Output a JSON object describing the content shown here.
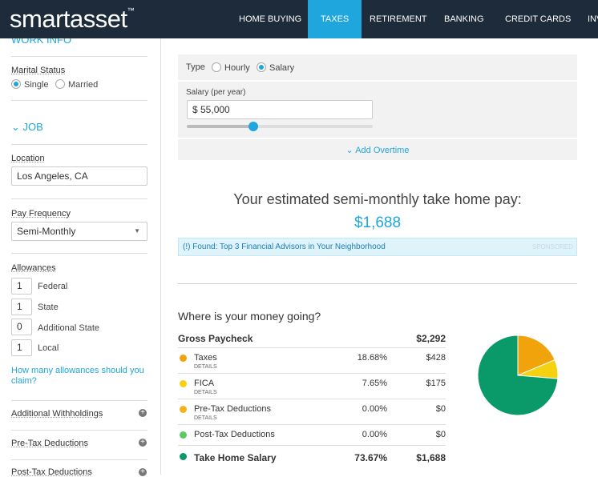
{
  "header": {
    "logo": "smartasset",
    "logo_mark": "™",
    "nav": [
      "HOME BUYING",
      "TAXES",
      "RETIREMENT",
      "BANKING",
      "CREDIT CARDS",
      "INV"
    ],
    "active_nav": 1
  },
  "sidebar": {
    "section_cut": "WORK INFO",
    "marital": {
      "label": "Marital Status",
      "options": [
        "Single",
        "Married"
      ],
      "selected": 0
    },
    "job": "JOB",
    "location": {
      "label": "Location",
      "value": "Los Angeles, CA"
    },
    "pay_frequency": {
      "label": "Pay Frequency",
      "value": "Semi-Monthly"
    },
    "allowances": {
      "label": "Allowances",
      "rows": [
        {
          "count": 1,
          "label": "Federal"
        },
        {
          "count": 1,
          "label": "State"
        },
        {
          "count": 0,
          "label": "Additional State"
        },
        {
          "count": 1,
          "label": "Local"
        }
      ]
    },
    "help": "How many allowances should you claim?",
    "sections": [
      "Additional Withholdings",
      "Pre-Tax Deductions",
      "Post-Tax Deductions"
    ]
  },
  "main": {
    "type": {
      "label": "Type",
      "options": [
        "Hourly",
        "Salary"
      ],
      "selected": 1
    },
    "salary": {
      "label": "Salary (per year)",
      "value": "$ 55,000"
    },
    "overtime": "Add Overtime",
    "result": {
      "heading": "Your estimated semi-monthly take home pay:",
      "amount": "$1,688"
    },
    "ad": {
      "text": "(!) Found: Top 3 Financial Advisors in Your Neighborhood",
      "tag": "SPONSORED"
    },
    "breakdown": {
      "title": "Where is your money going?",
      "gross": {
        "label": "Gross Paycheck",
        "amount": "$2,292"
      },
      "rows": [
        {
          "name": "Taxes",
          "color": "#f0a30a",
          "details": "DETAILS",
          "percent": {
            "value": 18.68,
            "label": "18.68%"
          },
          "amount": "$428"
        },
        {
          "name": "FICA",
          "color": "#f6d10f",
          "details": "DETAILS",
          "percent": {
            "value": 7.65,
            "label": "7.65%"
          },
          "amount": "$175"
        },
        {
          "name": "Pre-Tax Deductions",
          "color": "#f5b21c",
          "details": "DETAILS",
          "percent": {
            "value": 0,
            "label": "0.00%"
          },
          "amount": "$0"
        },
        {
          "name": "Post-Tax Deductions",
          "color": "#5ec865",
          "percent": {
            "value": 0,
            "label": "0.00%"
          },
          "amount": "$0"
        },
        {
          "name": "Take Home Salary",
          "color": "#0a9a6a",
          "percent": {
            "value": 73.67,
            "label": "73.67%"
          },
          "amount": "$1,688"
        }
      ]
    }
  }
}
